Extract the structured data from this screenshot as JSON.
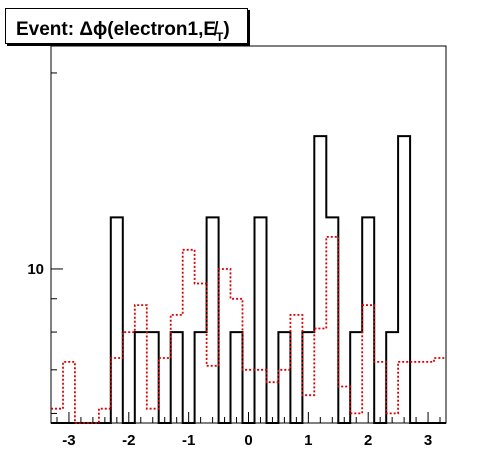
{
  "title": {
    "prefix": "Event: ",
    "phi": "Δϕ(electron1,",
    "met": "E̸",
    "sub": "T",
    "close": ")"
  },
  "chart_data": {
    "type": "step",
    "title": "Event: Δϕ(electron1,E̸T)",
    "xlabel": "",
    "ylabel": "",
    "xlim": [
      -3.3,
      3.3
    ],
    "ylim": [
      5.8,
      22
    ],
    "y_scale": "log",
    "bin_edges": [
      -3.3,
      -3.1,
      -2.9,
      -2.7,
      -2.5,
      -2.3,
      -2.1,
      -1.9,
      -1.7,
      -1.5,
      -1.3,
      -1.1,
      -0.9,
      -0.7,
      -0.5,
      -0.3,
      -0.1,
      0.1,
      0.3,
      0.5,
      0.7,
      0.9,
      1.1,
      1.3,
      1.5,
      1.7,
      1.9,
      2.1,
      2.3,
      2.5,
      2.7,
      2.9,
      3.1,
      3.3
    ],
    "x_ticks": [
      -3,
      -2,
      -1,
      0,
      1,
      2,
      3
    ],
    "x_tick_labels": [
      "-3",
      "-2",
      "-1",
      "0",
      "1",
      "2",
      "3"
    ],
    "y_ticks_major": [
      10
    ],
    "y_tick_labels": [
      "10"
    ],
    "series": [
      {
        "color": "#000000",
        "style": "solid",
        "values": [
          0,
          0,
          0,
          0,
          0,
          12,
          0,
          8,
          8,
          0,
          8,
          0,
          8,
          12,
          0,
          8,
          0,
          12,
          0,
          8,
          0,
          8,
          16,
          12,
          0,
          8,
          12,
          0,
          8,
          16,
          0,
          0,
          0
        ]
      },
      {
        "color": "#dd0000",
        "style": "dotted",
        "values": [
          6.1,
          7.2,
          0,
          0,
          6.1,
          7.3,
          8,
          8.8,
          6.1,
          7.3,
          8.5,
          10.7,
          9.5,
          7.1,
          10,
          9,
          7,
          7,
          6.7,
          7,
          8.5,
          6.4,
          8.1,
          11.2,
          6.6,
          6,
          8.8,
          7.2,
          6,
          7.2,
          7.2,
          7.2,
          7.3
        ]
      }
    ]
  }
}
